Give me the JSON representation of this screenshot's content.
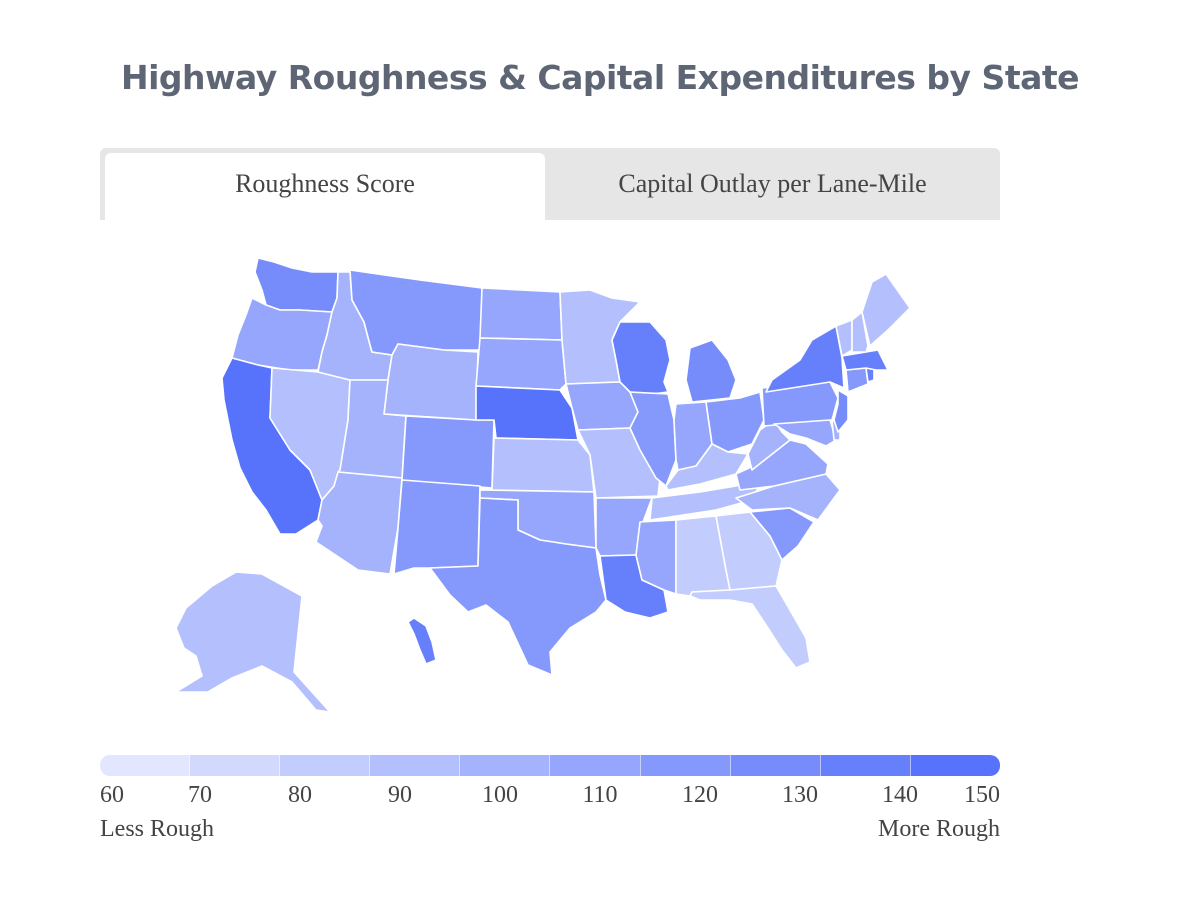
{
  "title": "Highway Roughness & Capital Expenditures by State",
  "tabs": [
    {
      "label": "Roughness Score",
      "active": true
    },
    {
      "label": "Capital Outlay per Lane-Mile",
      "active": false
    }
  ],
  "colors": [
    "#e2e6fe",
    "#d2d9fd",
    "#c3cdfd",
    "#b3c0fd",
    "#a4b3fc",
    "#95a6fc",
    "#8599fc",
    "#768cfb",
    "#667ffb",
    "#5773fb"
  ],
  "legend": {
    "ticks": [
      "60",
      "70",
      "80",
      "90",
      "100",
      "110",
      "120",
      "130",
      "140",
      "150"
    ],
    "low_label": "Less Rough",
    "high_label": "More Rough"
  },
  "chart_data": {
    "type": "choropleth",
    "metric": "Roughness Score",
    "scale": [
      60,
      150
    ],
    "states": {
      "WA": 130,
      "OR": 110,
      "CA": 145,
      "NV": 85,
      "ID": 100,
      "MT": 115,
      "WY": 100,
      "UT": 100,
      "AZ": 95,
      "CO": 115,
      "NM": 120,
      "ND": 105,
      "SD": 110,
      "NE": 150,
      "KS": 85,
      "OK": 105,
      "TX": 115,
      "MN": 85,
      "IA": 110,
      "MO": 85,
      "AR": 110,
      "LA": 135,
      "WI": 135,
      "IL": 115,
      "MI": 125,
      "IN": 110,
      "OH": 120,
      "KY": 90,
      "TN": 85,
      "MS": 110,
      "AL": 75,
      "GA": 75,
      "FL": 75,
      "SC": 115,
      "NC": 95,
      "VA": 110,
      "WV": 100,
      "PA": 115,
      "NY": 135,
      "ME": 90,
      "VT": 90,
      "NH": 85,
      "MA": 140,
      "CT": 115,
      "RI": 140,
      "NJ": 130,
      "DE": 95,
      "MD": 110,
      "AK": 85,
      "HI": 140
    }
  }
}
